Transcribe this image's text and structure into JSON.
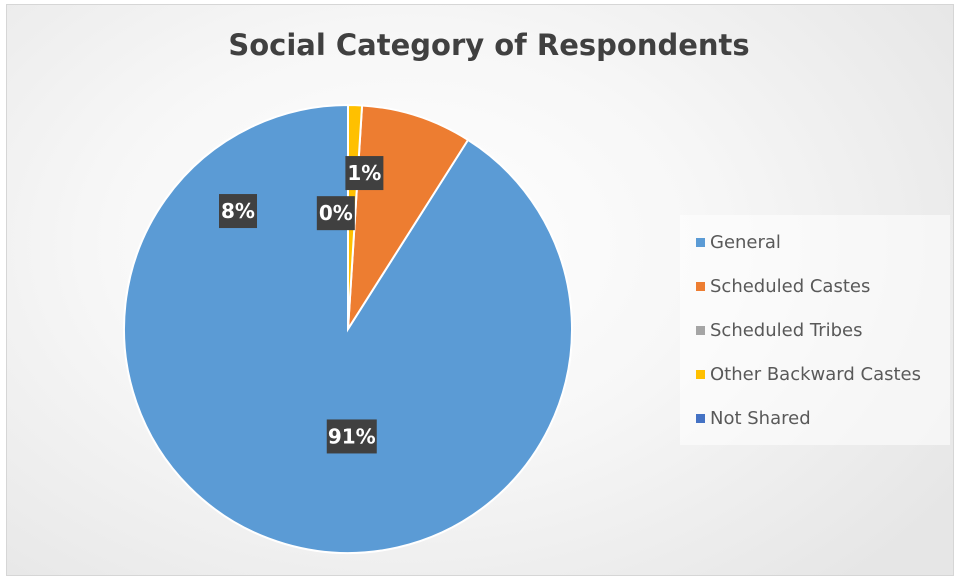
{
  "chart_data": {
    "type": "pie",
    "title": "Social Category of Respondents",
    "categories": [
      "General",
      "Scheduled Castes",
      "Scheduled Tribes",
      "Other Backward Castes",
      "Not Shared"
    ],
    "values": [
      91,
      8,
      0,
      1,
      0
    ],
    "labels": [
      "91%",
      "8%",
      "0%",
      "1%",
      ""
    ],
    "colors": [
      "#5b9bd5",
      "#ed7d31",
      "#a5a5a5",
      "#ffc000",
      "#4472c4"
    ],
    "legend_position": "right",
    "start_angle_deg": 0,
    "direction": "counterclockwise"
  },
  "legend": {
    "items": [
      {
        "label": "General",
        "color": "#5b9bd5"
      },
      {
        "label": "Scheduled Castes",
        "color": "#ed7d31"
      },
      {
        "label": "Scheduled Tribes",
        "color": "#a5a5a5"
      },
      {
        "label": "Other Backward Castes",
        "color": "#ffc000"
      },
      {
        "label": "Not Shared",
        "color": "#4472c4"
      }
    ]
  }
}
